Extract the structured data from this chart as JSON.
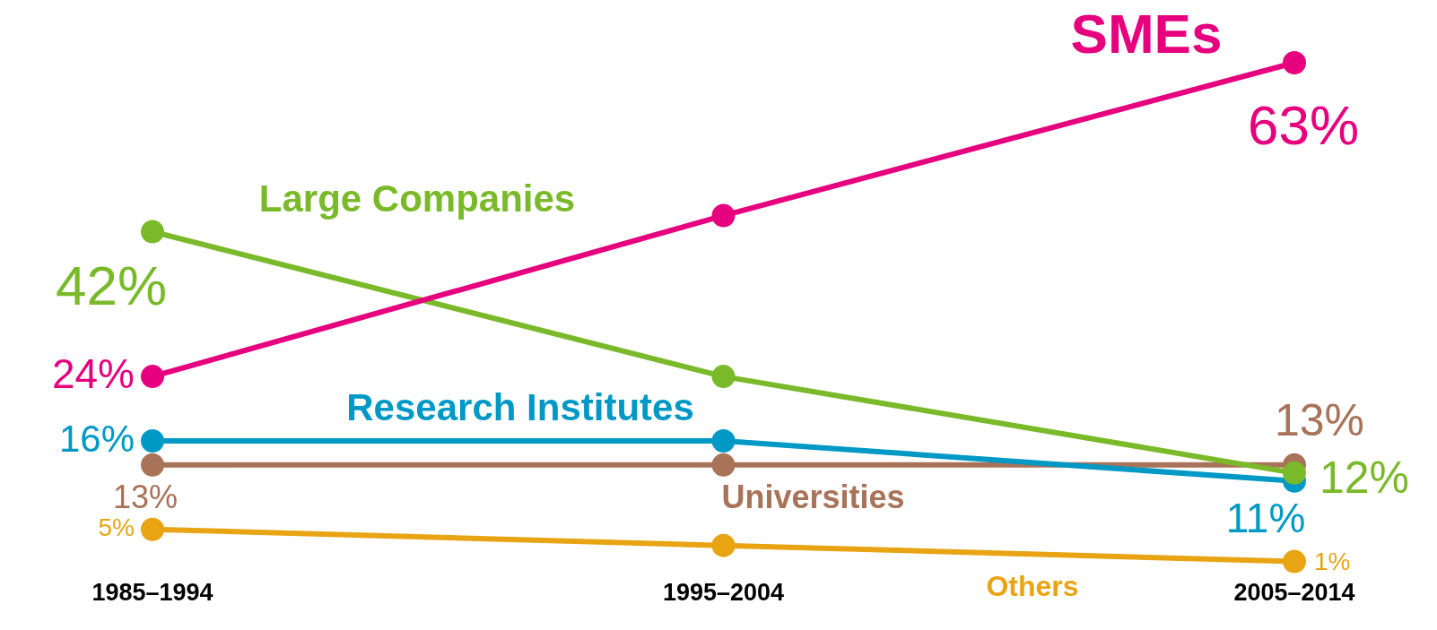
{
  "chart_data": {
    "type": "line",
    "categories": [
      "1985–1994",
      "1995–2004",
      "2005–2014"
    ],
    "series": [
      {
        "name": "SMEs",
        "color": "#e6007e",
        "values": [
          24,
          44,
          63
        ],
        "value_labels": [
          "24%",
          null,
          "63%"
        ]
      },
      {
        "name": "Large Companies",
        "color": "#7aba2a",
        "values": [
          42,
          24,
          12
        ],
        "value_labels": [
          "42%",
          null,
          "12%"
        ]
      },
      {
        "name": "Research Institutes",
        "color": "#0099c6",
        "values": [
          16,
          16,
          11
        ],
        "value_labels": [
          "16%",
          null,
          "11%"
        ]
      },
      {
        "name": "Universities",
        "color": "#a87358",
        "values": [
          13,
          13,
          13
        ],
        "value_labels": [
          "13%",
          null,
          "13%"
        ]
      },
      {
        "name": "Others",
        "color": "#e8a413",
        "values": [
          5,
          3,
          1
        ],
        "value_labels": [
          "5%",
          null,
          "1%"
        ]
      }
    ],
    "tick_labels": "x",
    "grid": false,
    "legend": false,
    "marker": "circle",
    "line_style": "solid"
  }
}
